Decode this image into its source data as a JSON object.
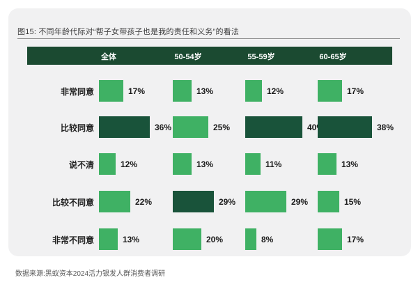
{
  "page": {
    "source": "数据来源:黑蚁资本2024活力银发人群消费者调研"
  },
  "chart_data": {
    "type": "bar",
    "title": "图15: 不同年龄代际对“帮子女带孩子也是我的责任和义务”的看法",
    "unit": "%",
    "orientation": "horizontal",
    "columns": [
      "全体",
      "50-54岁",
      "55-59岁",
      "60-65岁"
    ],
    "rows": [
      {
        "label": "非常同意",
        "values": [
          17,
          13,
          12,
          17
        ],
        "highlighted": [
          false,
          false,
          false,
          false
        ]
      },
      {
        "label": "比较同意",
        "values": [
          36,
          25,
          40,
          38
        ],
        "highlighted": [
          true,
          false,
          true,
          true
        ]
      },
      {
        "label": "说不清",
        "values": [
          12,
          13,
          11,
          13
        ],
        "highlighted": [
          false,
          false,
          false,
          false
        ]
      },
      {
        "label": "比较不同意",
        "values": [
          22,
          29,
          29,
          15
        ],
        "highlighted": [
          false,
          true,
          false,
          false
        ]
      },
      {
        "label": "非常不同意",
        "values": [
          13,
          20,
          8,
          17
        ],
        "highlighted": [
          false,
          false,
          false,
          false
        ]
      }
    ],
    "colors": {
      "bar_green": "#3fb164",
      "bar_dark_green": "#19533a",
      "header_bg": "#1b4a31",
      "header_text": "#ffffff",
      "card_bg": "#f1f1f2",
      "title_text": "#3c3c3c",
      "value_text": "#1a1a1a",
      "source_text": "#595959"
    }
  }
}
